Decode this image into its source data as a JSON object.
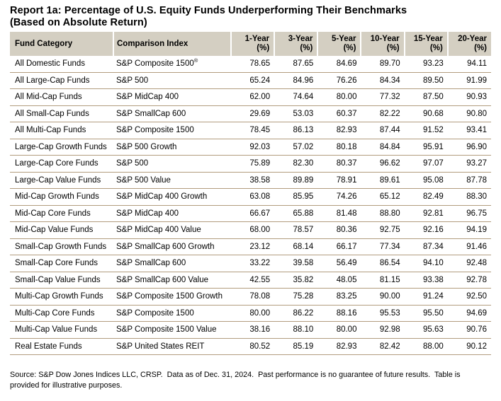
{
  "title": {
    "line1": "Report 1a: Percentage of U.S. Equity Funds Underperforming Their Benchmarks",
    "line2": "(Based on Absolute Return)"
  },
  "colors": {
    "header_bg": "#d4cfc2",
    "row_divider": "#b29c7e",
    "text": "#000000",
    "background": "#ffffff"
  },
  "table": {
    "columns": [
      {
        "key": "category",
        "label": "Fund Category"
      },
      {
        "key": "index",
        "label": "Comparison Index"
      },
      {
        "key": "y1",
        "label": "1-Year\n(%)"
      },
      {
        "key": "y3",
        "label": "3-Year\n(%)"
      },
      {
        "key": "y5",
        "label": "5-Year\n(%)"
      },
      {
        "key": "y10",
        "label": "10-Year\n(%)"
      },
      {
        "key": "y15",
        "label": "15-Year\n(%)"
      },
      {
        "key": "y20",
        "label": "20-Year\n(%)"
      }
    ],
    "rows": [
      {
        "category": "All Domestic Funds",
        "index": "S&P Composite 1500",
        "index_sup": "®",
        "values": [
          "78.65",
          "87.65",
          "84.69",
          "89.70",
          "93.23",
          "94.11"
        ]
      },
      {
        "category": "All Large-Cap Funds",
        "index": "S&P 500",
        "index_sup": "",
        "values": [
          "65.24",
          "84.96",
          "76.26",
          "84.34",
          "89.50",
          "91.99"
        ]
      },
      {
        "category": "All Mid-Cap Funds",
        "index": "S&P MidCap 400",
        "index_sup": "",
        "values": [
          "62.00",
          "74.64",
          "80.00",
          "77.32",
          "87.50",
          "90.93"
        ]
      },
      {
        "category": "All Small-Cap Funds",
        "index": "S&P SmallCap 600",
        "index_sup": "",
        "values": [
          "29.69",
          "53.03",
          "60.37",
          "82.22",
          "90.68",
          "90.80"
        ]
      },
      {
        "category": "All Multi-Cap Funds",
        "index": "S&P Composite 1500",
        "index_sup": "",
        "values": [
          "78.45",
          "86.13",
          "82.93",
          "87.44",
          "91.52",
          "93.41"
        ]
      },
      {
        "category": "Large-Cap Growth Funds",
        "index": "S&P 500 Growth",
        "index_sup": "",
        "values": [
          "92.03",
          "57.02",
          "80.18",
          "84.84",
          "95.91",
          "96.90"
        ]
      },
      {
        "category": "Large-Cap Core Funds",
        "index": "S&P 500",
        "index_sup": "",
        "values": [
          "75.89",
          "82.30",
          "80.37",
          "96.62",
          "97.07",
          "93.27"
        ]
      },
      {
        "category": "Large-Cap Value Funds",
        "index": "S&P 500 Value",
        "index_sup": "",
        "values": [
          "38.58",
          "89.89",
          "78.91",
          "89.61",
          "95.08",
          "87.78"
        ]
      },
      {
        "category": "Mid-Cap Growth Funds",
        "index": "S&P MidCap 400 Growth",
        "index_sup": "",
        "values": [
          "63.08",
          "85.95",
          "74.26",
          "65.12",
          "82.49",
          "88.30"
        ]
      },
      {
        "category": "Mid-Cap Core Funds",
        "index": "S&P MidCap 400",
        "index_sup": "",
        "values": [
          "66.67",
          "65.88",
          "81.48",
          "88.80",
          "92.81",
          "96.75"
        ]
      },
      {
        "category": "Mid-Cap Value Funds",
        "index": "S&P MidCap 400 Value",
        "index_sup": "",
        "values": [
          "68.00",
          "78.57",
          "80.36",
          "92.75",
          "92.16",
          "94.19"
        ]
      },
      {
        "category": "Small-Cap Growth Funds",
        "index": "S&P SmallCap 600 Growth",
        "index_sup": "",
        "values": [
          "23.12",
          "68.14",
          "66.17",
          "77.34",
          "87.34",
          "91.46"
        ]
      },
      {
        "category": "Small-Cap Core Funds",
        "index": "S&P SmallCap 600",
        "index_sup": "",
        "values": [
          "33.22",
          "39.58",
          "56.49",
          "86.54",
          "94.10",
          "92.48"
        ]
      },
      {
        "category": "Small-Cap Value Funds",
        "index": "S&P SmallCap 600 Value",
        "index_sup": "",
        "values": [
          "42.55",
          "35.82",
          "48.05",
          "81.15",
          "93.38",
          "92.78"
        ]
      },
      {
        "category": "Multi-Cap Growth Funds",
        "index": "S&P Composite 1500 Growth",
        "index_sup": "",
        "values": [
          "78.08",
          "75.28",
          "83.25",
          "90.00",
          "91.24",
          "92.50"
        ]
      },
      {
        "category": "Multi-Cap Core Funds",
        "index": "S&P Composite 1500",
        "index_sup": "",
        "values": [
          "80.00",
          "86.22",
          "88.16",
          "95.53",
          "95.50",
          "94.69"
        ]
      },
      {
        "category": "Multi-Cap Value Funds",
        "index": "S&P Composite 1500 Value",
        "index_sup": "",
        "values": [
          "38.16",
          "88.10",
          "80.00",
          "92.98",
          "95.63",
          "90.76"
        ]
      },
      {
        "category": "Real Estate Funds",
        "index": "S&P United States REIT",
        "index_sup": "",
        "values": [
          "80.52",
          "85.19",
          "82.93",
          "82.42",
          "88.00",
          "90.12"
        ]
      }
    ]
  },
  "footnote": "Source: S&P Dow Jones Indices LLC, CRSP.  Data as of Dec. 31, 2024.  Past performance is no guarantee of future results.  Table is provided for illustrative purposes."
}
